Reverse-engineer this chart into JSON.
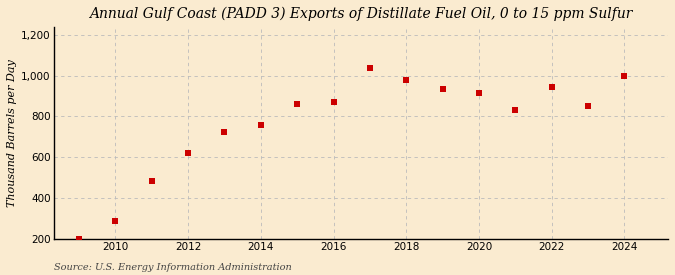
{
  "title": "Annual Gulf Coast (PADD 3) Exports of Distillate Fuel Oil, 0 to 15 ppm Sulfur",
  "ylabel": "Thousand Barrels per Day",
  "source": "Source: U.S. Energy Information Administration",
  "years": [
    2009,
    2010,
    2011,
    2012,
    2013,
    2014,
    2015,
    2016,
    2017,
    2018,
    2019,
    2020,
    2021,
    2022,
    2023,
    2024
  ],
  "values": [
    200,
    285,
    485,
    620,
    725,
    760,
    860,
    870,
    1035,
    980,
    935,
    915,
    830,
    945,
    850,
    1000
  ],
  "marker_color": "#cc0000",
  "marker_size": 18,
  "xlim": [
    2008.3,
    2025.2
  ],
  "ylim": [
    200,
    1240
  ],
  "yticks": [
    200,
    400,
    600,
    800,
    1000,
    1200
  ],
  "xticks": [
    2010,
    2012,
    2014,
    2016,
    2018,
    2020,
    2022,
    2024
  ],
  "background_color": "#faebd0",
  "grid_color": "#bbbbbb",
  "title_fontsize": 10,
  "label_fontsize": 8,
  "tick_fontsize": 7.5,
  "source_fontsize": 7
}
